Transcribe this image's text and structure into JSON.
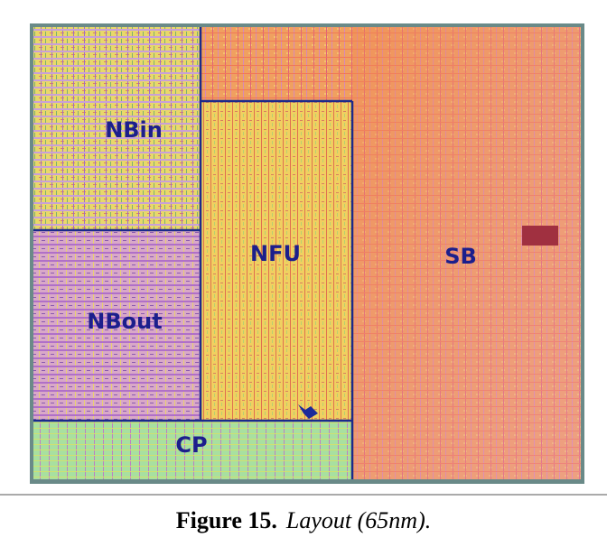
{
  "figure": {
    "regions": [
      {
        "label": "NBin"
      },
      {
        "label": "NBout"
      },
      {
        "label": "NFU"
      },
      {
        "label": "SB"
      },
      {
        "label": "CP"
      }
    ],
    "caption": {
      "number": "Figure 15.",
      "text": "Layout (65nm)."
    }
  }
}
